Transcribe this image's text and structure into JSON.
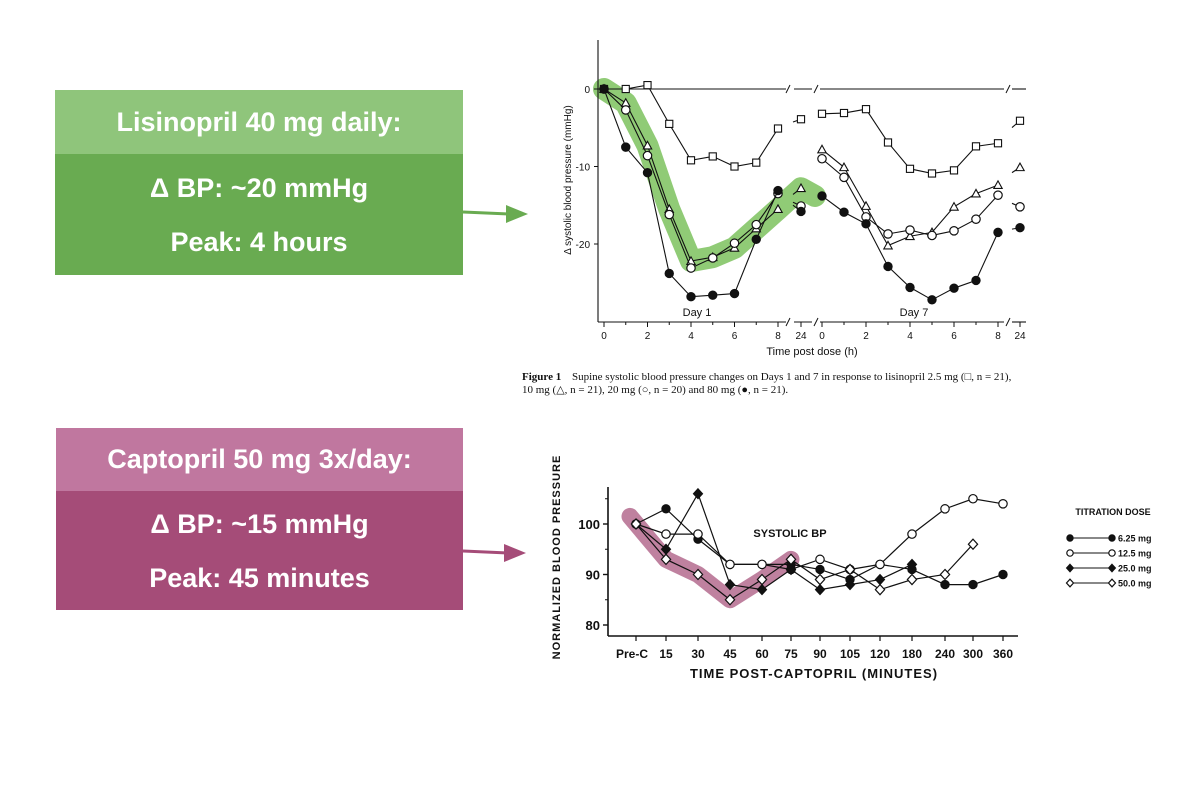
{
  "callouts": {
    "lisinopril": {
      "title": "Lisinopril 40 mg daily:",
      "delta": "Δ BP: ~20 mmHg",
      "peak": "Peak: 4 hours",
      "color_header": "#8fc57b",
      "color_body": "#69ab51"
    },
    "captopril": {
      "title": "Captopril 50 mg 3x/day:",
      "delta": "Δ BP: ~15 mmHg",
      "peak": "Peak: 45 minutes",
      "color_header": "#c0779f",
      "color_body": "#a54c78"
    }
  },
  "chart_data": [
    {
      "type": "line",
      "ylabel": "Δ systolic blood pressure (mmHg)",
      "xlabel": "Time post dose (h)",
      "ylim": [
        -29,
        3
      ],
      "yticks": [
        0,
        -10,
        -20
      ],
      "xticks": [
        "0",
        "2",
        "4",
        "6",
        "8",
        "24"
      ],
      "panel_labels": [
        "Day 1",
        "Day 7"
      ],
      "caption_label": "Figure 1",
      "caption_line1": "Supine systolic blood pressure changes on Days 1 and 7 in response to lisinopril 2.5 mg (□, n = 21),",
      "caption_line2": "10 mg (△, n = 21), 20 mg (○, n = 20) and 80 mg (●, n = 21).",
      "highlight_series": "10 mg",
      "highlight_color": "#7cc25e",
      "panels": [
        {
          "name": "Day 1",
          "x": [
            0,
            1,
            2,
            3,
            4,
            5,
            6,
            7,
            8
          ],
          "series": [
            {
              "name": "2.5 mg",
              "marker": "square-open",
              "values": [
                0,
                0,
                0.5,
                -4.5,
                -9.2,
                -8.7,
                -10,
                -9.5,
                -5.1
              ],
              "x24": -3.9
            },
            {
              "name": "10 mg",
              "marker": "triangle-open",
              "values": [
                0,
                -1.8,
                -7.3,
                -15.5,
                -22.2,
                -21.7,
                -20.5,
                -18,
                -15.5
              ],
              "x24": -12.8
            },
            {
              "name": "20 mg",
              "marker": "circle-open",
              "values": [
                0,
                -2.7,
                -8.6,
                -16.2,
                -23.1,
                -21.8,
                -19.9,
                -17.5,
                -13.5
              ],
              "x24": -15.1
            },
            {
              "name": "80 mg",
              "marker": "circle-filled",
              "values": [
                0,
                -7.5,
                -10.8,
                -23.8,
                -26.8,
                -26.6,
                -26.4,
                -19.4,
                -13.1
              ],
              "x24": -15.8
            }
          ]
        },
        {
          "name": "Day 7",
          "x": [
            0,
            1,
            2,
            3,
            4,
            5,
            6,
            7,
            8
          ],
          "series": [
            {
              "name": "2.5 mg",
              "marker": "square-open",
              "values": [
                -3.2,
                -3.1,
                -2.6,
                -6.9,
                -10.3,
                -10.9,
                -10.5,
                -7.4,
                -7
              ],
              "x24": -4.1
            },
            {
              "name": "10 mg",
              "marker": "triangle-open",
              "values": [
                -7.8,
                -10.1,
                -15.1,
                -20.2,
                -19,
                -18.5,
                -15.2,
                -13.5,
                -12.4
              ],
              "x24": -10.1
            },
            {
              "name": "20 mg",
              "marker": "circle-open",
              "values": [
                -9,
                -11.4,
                -16.5,
                -18.7,
                -18.2,
                -18.9,
                -18.3,
                -16.8,
                -13.7
              ],
              "x24": -15.2
            },
            {
              "name": "80 mg",
              "marker": "circle-filled",
              "values": [
                -13.8,
                -15.9,
                -17.4,
                -22.9,
                -25.6,
                -27.2,
                -25.7,
                -24.7,
                -18.5
              ],
              "x24": -17.9
            }
          ]
        }
      ]
    },
    {
      "type": "line",
      "title": "SYSTOLIC BP",
      "ylabel": "NORMALIZED BLOOD PRESSURE",
      "xlabel": "TIME POST-CAPTOPRIL (MINUTES)",
      "ylim": [
        78,
        108
      ],
      "yticks": [
        80,
        90,
        100
      ],
      "categories": [
        "Pre-C",
        "15",
        "30",
        "45",
        "60",
        "75",
        "90",
        "105",
        "120",
        "180",
        "240",
        "300",
        "360"
      ],
      "legend_title": "TITRATION DOSE",
      "legend_position": "right",
      "highlight_series": "50.0 mg",
      "highlight_color": "#a9577f",
      "series": [
        {
          "name": "6.25 mg",
          "marker": "circle-filled",
          "values": [
            100,
            103,
            97,
            92,
            92,
            92,
            91,
            89,
            92,
            91,
            88,
            88,
            90
          ]
        },
        {
          "name": "12.5 mg",
          "marker": "circle-open",
          "values": [
            100,
            98,
            98,
            92,
            92,
            91,
            93,
            91,
            92,
            98,
            103,
            105,
            104
          ]
        },
        {
          "name": "25.0 mg",
          "marker": "diamond-filled",
          "values": [
            100,
            95,
            106,
            88,
            87,
            91,
            87,
            88,
            89,
            92,
            null,
            null,
            null
          ]
        },
        {
          "name": "50.0 mg",
          "marker": "diamond-open",
          "values": [
            100,
            93,
            90,
            85,
            89,
            93,
            89,
            91,
            87,
            89,
            90,
            96,
            null
          ]
        }
      ]
    }
  ]
}
